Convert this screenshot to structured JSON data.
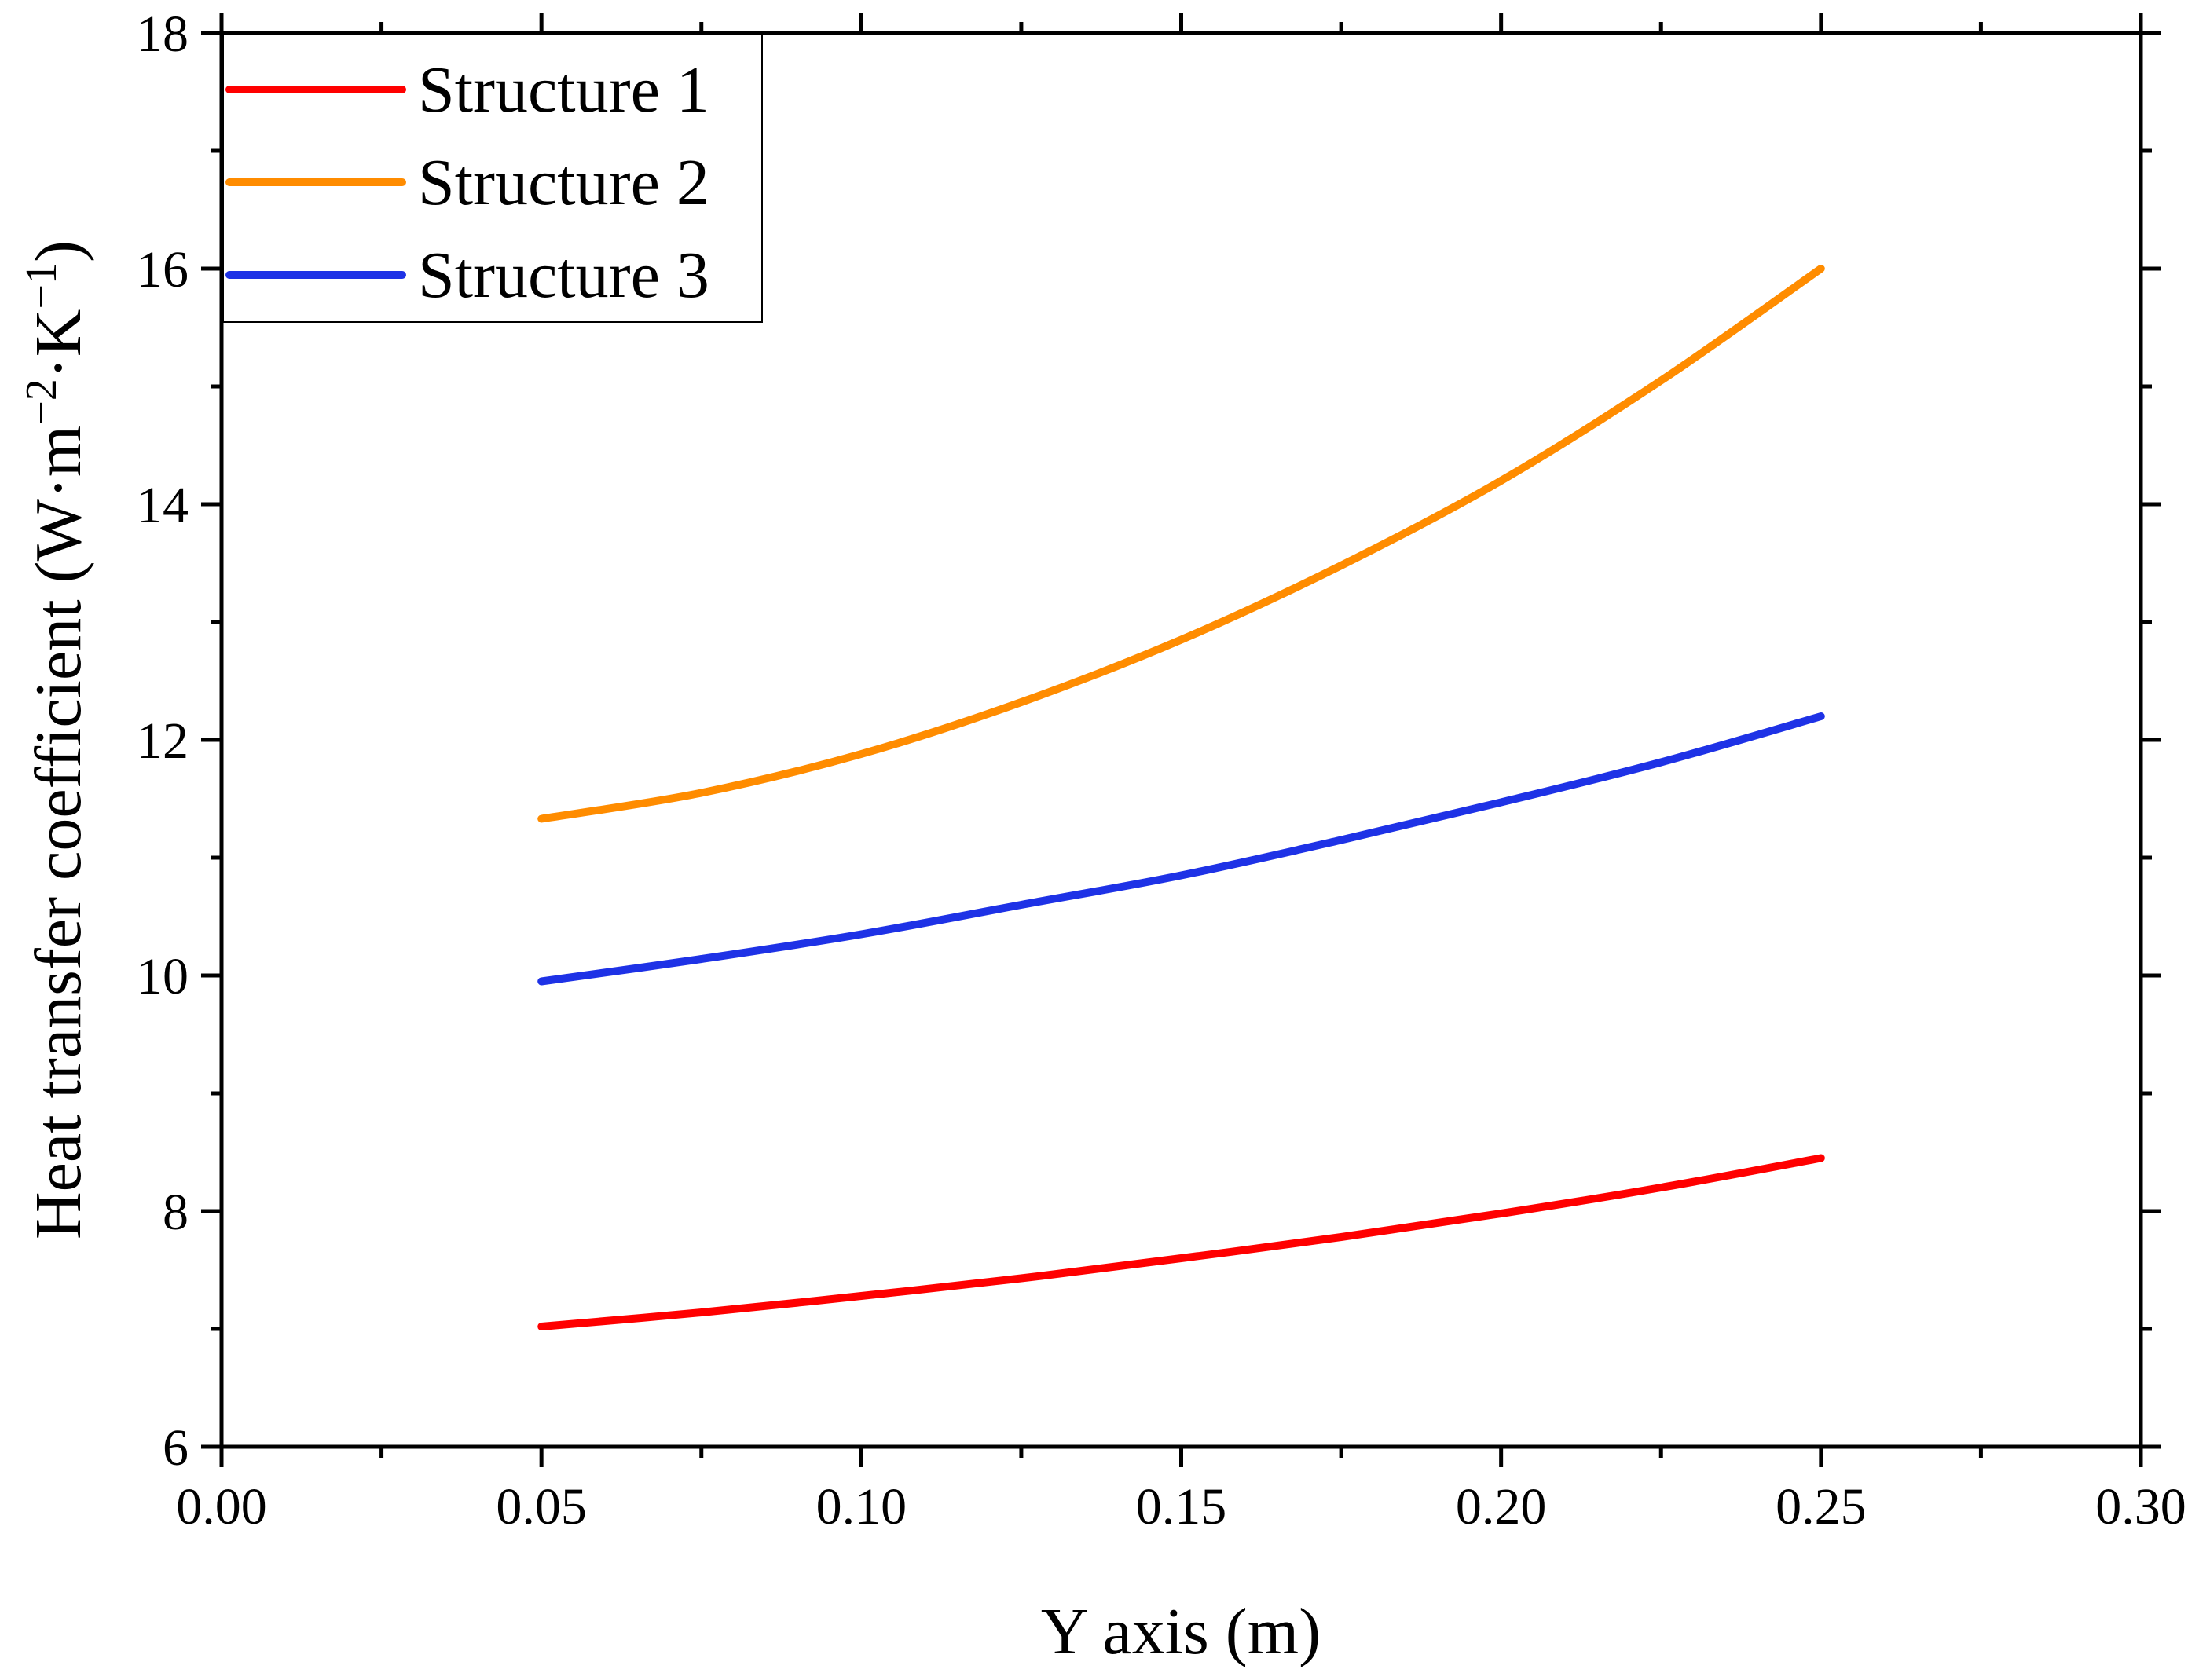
{
  "chart_data": {
    "type": "line",
    "title": "",
    "xlabel": "Y axis (m)",
    "ylabel_main": "Heat transfer coefficient (W·m",
    "ylabel_sup1": "−2",
    "ylabel_mid": "·K",
    "ylabel_sup2": "−1",
    "ylabel_end": ")",
    "xlim": [
      0.0,
      0.3
    ],
    "ylim": [
      6,
      18
    ],
    "xticks": [
      {
        "value": 0.0,
        "label": "0.00"
      },
      {
        "value": 0.05,
        "label": "0.05"
      },
      {
        "value": 0.1,
        "label": "0.10"
      },
      {
        "value": 0.15,
        "label": "0.15"
      },
      {
        "value": 0.2,
        "label": "0.20"
      },
      {
        "value": 0.25,
        "label": "0.25"
      },
      {
        "value": 0.3,
        "label": "0.30"
      }
    ],
    "xminor": [
      0.025,
      0.075,
      0.125,
      0.175,
      0.225,
      0.275
    ],
    "yticks": [
      {
        "value": 6,
        "label": "6"
      },
      {
        "value": 8,
        "label": "8"
      },
      {
        "value": 10,
        "label": "10"
      },
      {
        "value": 12,
        "label": "12"
      },
      {
        "value": 14,
        "label": "14"
      },
      {
        "value": 16,
        "label": "16"
      },
      {
        "value": 18,
        "label": "18"
      }
    ],
    "yminor": [
      7,
      9,
      11,
      13,
      15,
      17
    ],
    "legend_position": "top-left",
    "series": [
      {
        "name": "Structure 1",
        "color": "#ff0000",
        "x": [
          0.05,
          0.075,
          0.1,
          0.125,
          0.15,
          0.175,
          0.2,
          0.225,
          0.25
        ],
        "y": [
          7.02,
          7.14,
          7.28,
          7.43,
          7.6,
          7.78,
          7.98,
          8.2,
          8.45
        ]
      },
      {
        "name": "Structure 2",
        "color": "#ff8c00",
        "x": [
          0.05,
          0.075,
          0.1,
          0.125,
          0.15,
          0.175,
          0.2,
          0.225,
          0.25
        ],
        "y": [
          11.33,
          11.55,
          11.88,
          12.32,
          12.85,
          13.48,
          14.2,
          15.05,
          16.0
        ]
      },
      {
        "name": "Structure 3",
        "color": "#1e32e6",
        "x": [
          0.05,
          0.075,
          0.1,
          0.125,
          0.15,
          0.175,
          0.2,
          0.225,
          0.25
        ],
        "y": [
          9.95,
          10.14,
          10.35,
          10.6,
          10.85,
          11.15,
          11.47,
          11.81,
          12.2
        ]
      }
    ]
  }
}
